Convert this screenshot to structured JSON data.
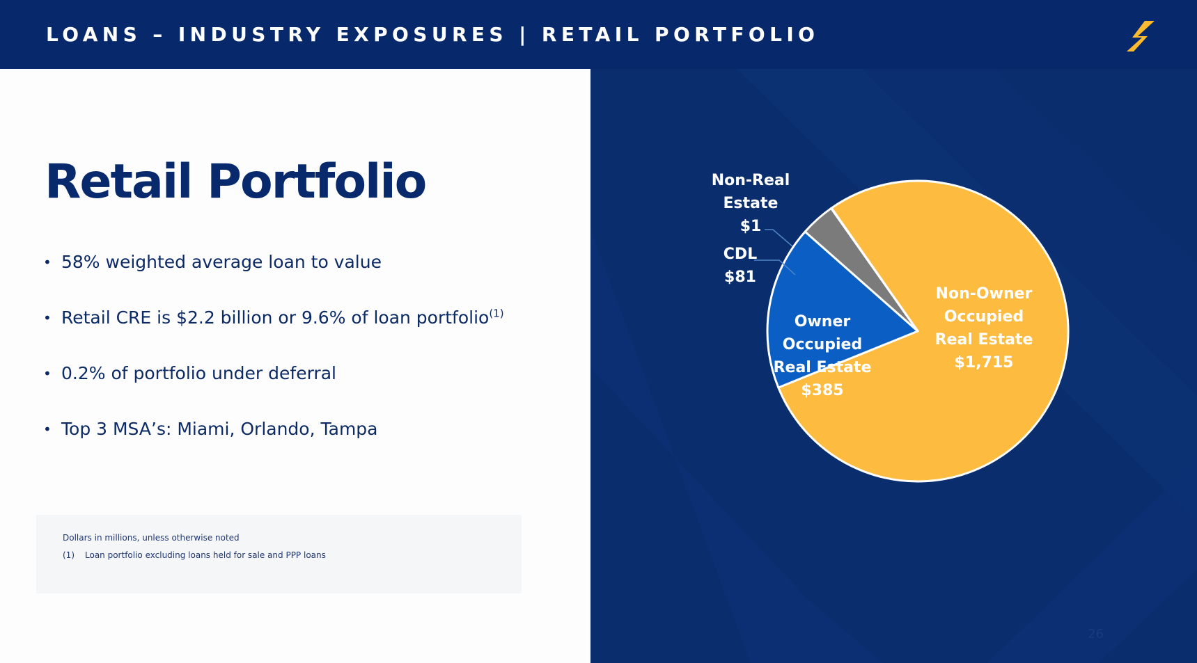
{
  "header": {
    "title": "LOANS – INDUSTRY EXPOSURES | RETAIL PORTFOLIO",
    "logo_icon": "s-logo-icon",
    "background_color": "#07296b",
    "logo_color": "#fdbb30"
  },
  "main": {
    "heading": "Retail Portfolio",
    "bullets": [
      {
        "text": "58% weighted average loan to value",
        "sup": ""
      },
      {
        "text": "Retail CRE is $2.2 billion or 9.6% of loan portfolio",
        "sup": "(1)"
      },
      {
        "text": "0.2% of portfolio under deferral",
        "sup": ""
      },
      {
        "text": "Top 3 MSA’s: Miami, Orlando, Tampa",
        "sup": ""
      }
    ],
    "footnotes": {
      "units_note": "Dollars in millions, unless otherwise noted",
      "note1_number": "(1)",
      "note1_text": "Loan portfolio excluding loans held for sale and PPP loans"
    },
    "page_number": "26"
  },
  "chart_data": {
    "type": "pie",
    "title": "",
    "units": "Dollars in millions",
    "slices": [
      {
        "label_lines": [
          "Non-Owner",
          "Occupied",
          "Real Estate"
        ],
        "value_label": "$1,715",
        "value": 1715,
        "color": "#fdbb3f",
        "label_color": "#ffffff"
      },
      {
        "label_lines": [
          "Owner",
          "Occupied",
          "Real Estate"
        ],
        "value_label": "$385",
        "value": 385,
        "color": "#0b5fc4",
        "label_color": "#ffffff"
      },
      {
        "label_lines": [
          "CDL"
        ],
        "value_label": "$81",
        "value": 81,
        "color": "#7b7b7b",
        "label_color": "#ffffff"
      },
      {
        "label_lines": [
          "Non-Real",
          "Estate"
        ],
        "value_label": "$1",
        "value": 1,
        "color": "#2d2d2d",
        "label_color": "#ffffff"
      }
    ],
    "slice_border_color": "#ffffff",
    "leader_line_color": "#4f86c6",
    "legend": "none"
  }
}
